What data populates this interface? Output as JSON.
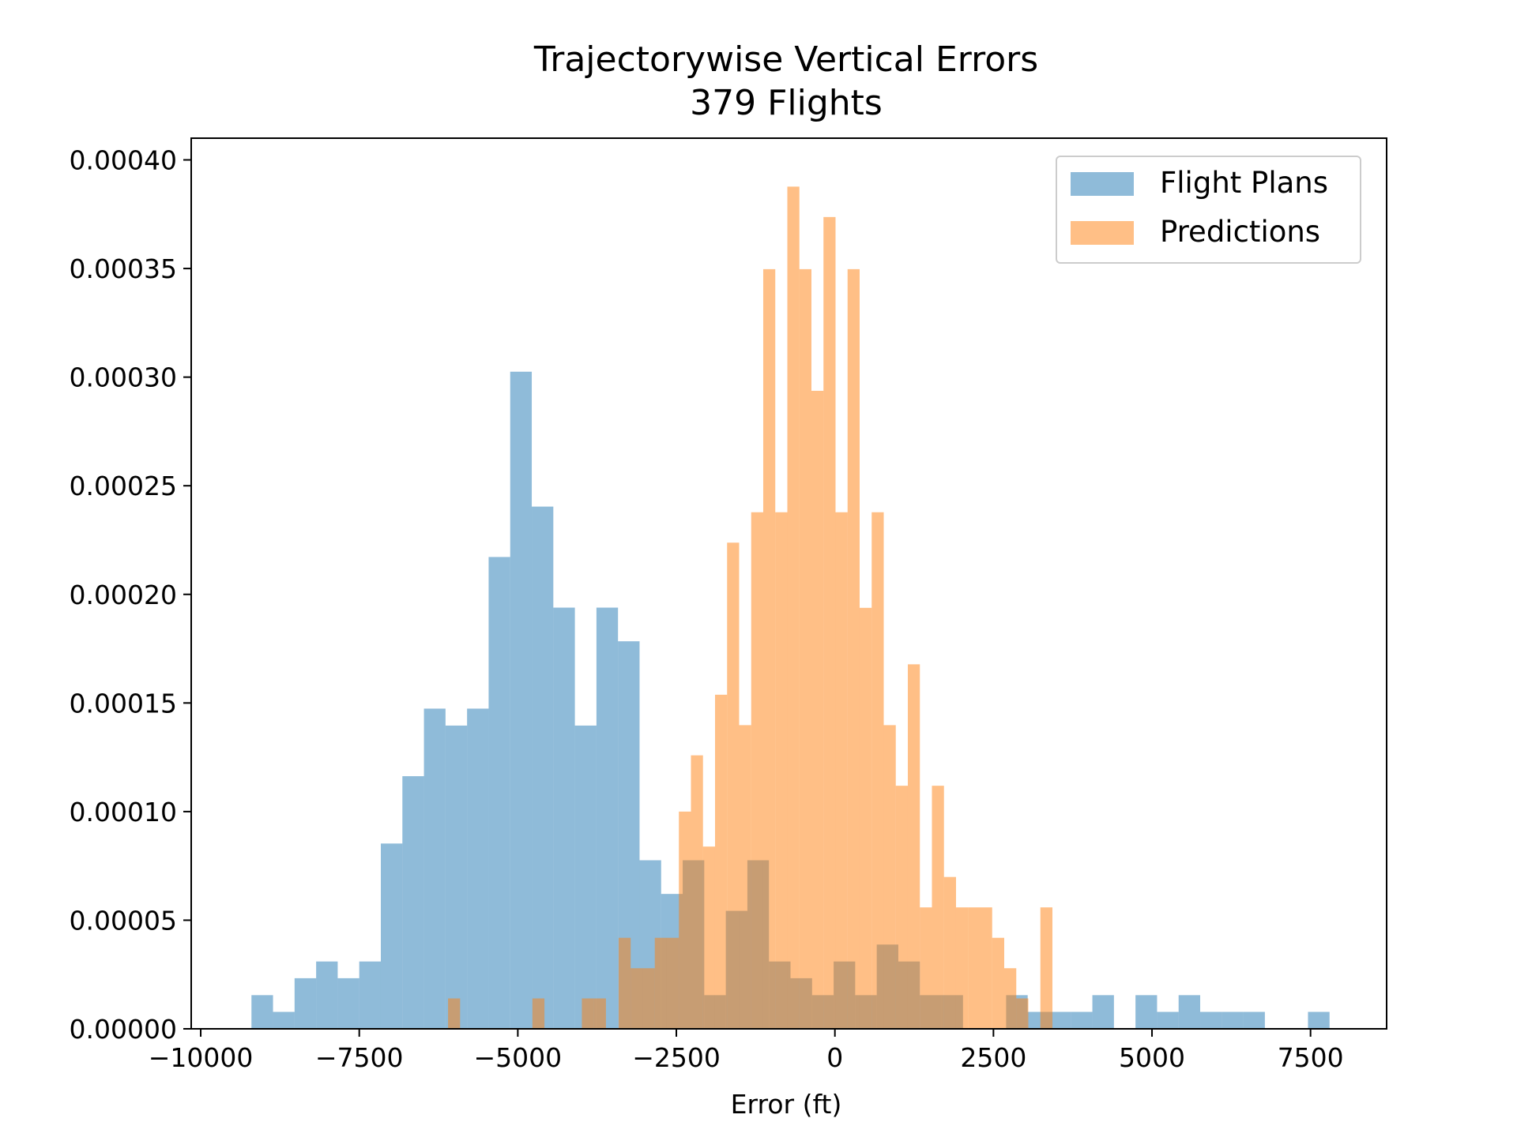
{
  "chart_data": {
    "type": "bar",
    "title": "Trajectorywise Vertical Errors",
    "subtitle": "379 Flights",
    "xlabel": "Error (ft)",
    "ylabel": "",
    "xlim": [
      -10150,
      8700
    ],
    "ylim": [
      0,
      0.00041
    ],
    "xticks": [
      -10000,
      -7500,
      -5000,
      -2500,
      0,
      2500,
      5000,
      7500
    ],
    "xtick_labels": [
      "−10000",
      "−7500",
      "−5000",
      "−2500",
      "0",
      "2500",
      "5000",
      "7500"
    ],
    "yticks": [
      0,
      5e-05,
      0.0001,
      0.00015,
      0.0002,
      0.00025,
      0.0003,
      0.00035,
      0.0004
    ],
    "ytick_labels": [
      "0.00000",
      "0.00005",
      "0.00010",
      "0.00015",
      "0.00020",
      "0.00025",
      "0.00030",
      "0.00035",
      "0.00040"
    ],
    "grid": false,
    "legend_position": "top-right",
    "series": [
      {
        "name": "Flight Plans",
        "color": "#1f77b4",
        "opacity": 0.5,
        "bins": [
          {
            "x0": -9200,
            "x1": -8860,
            "y": 1.55e-05
          },
          {
            "x0": -8860,
            "x1": -8520,
            "y": 7.8e-06
          },
          {
            "x0": -8520,
            "x1": -8180,
            "y": 2.33e-05
          },
          {
            "x0": -8180,
            "x1": -7840,
            "y": 3.1e-05
          },
          {
            "x0": -7840,
            "x1": -7500,
            "y": 2.33e-05
          },
          {
            "x0": -7500,
            "x1": -7160,
            "y": 3.1e-05
          },
          {
            "x0": -7160,
            "x1": -6820,
            "y": 8.53e-05
          },
          {
            "x0": -6820,
            "x1": -6480,
            "y": 0.0001163
          },
          {
            "x0": -6480,
            "x1": -6140,
            "y": 0.0001474
          },
          {
            "x0": -6140,
            "x1": -5800,
            "y": 0.0001396
          },
          {
            "x0": -5800,
            "x1": -5460,
            "y": 0.0001474
          },
          {
            "x0": -5460,
            "x1": -5120,
            "y": 0.0002172
          },
          {
            "x0": -5120,
            "x1": -4780,
            "y": 0.0003025
          },
          {
            "x0": -4780,
            "x1": -4440,
            "y": 0.0002404
          },
          {
            "x0": -4440,
            "x1": -4100,
            "y": 0.0001939
          },
          {
            "x0": -4100,
            "x1": -3760,
            "y": 0.0001396
          },
          {
            "x0": -3760,
            "x1": -3420,
            "y": 0.0001939
          },
          {
            "x0": -3420,
            "x1": -3080,
            "y": 0.0001784
          },
          {
            "x0": -3080,
            "x1": -2740,
            "y": 7.76e-05
          },
          {
            "x0": -2740,
            "x1": -2400,
            "y": 6.21e-05
          },
          {
            "x0": -2400,
            "x1": -2060,
            "y": 7.76e-05
          },
          {
            "x0": -2060,
            "x1": -1720,
            "y": 1.55e-05
          },
          {
            "x0": -1720,
            "x1": -1380,
            "y": 5.43e-05
          },
          {
            "x0": -1380,
            "x1": -1040,
            "y": 7.76e-05
          },
          {
            "x0": -1040,
            "x1": -700,
            "y": 3.1e-05
          },
          {
            "x0": -700,
            "x1": -360,
            "y": 2.33e-05
          },
          {
            "x0": -360,
            "x1": -20,
            "y": 1.55e-05
          },
          {
            "x0": -20,
            "x1": 320,
            "y": 3.1e-05
          },
          {
            "x0": 320,
            "x1": 660,
            "y": 1.55e-05
          },
          {
            "x0": 660,
            "x1": 1000,
            "y": 3.88e-05
          },
          {
            "x0": 1000,
            "x1": 1340,
            "y": 3.1e-05
          },
          {
            "x0": 1340,
            "x1": 1680,
            "y": 1.55e-05
          },
          {
            "x0": 1680,
            "x1": 2020,
            "y": 1.55e-05
          },
          {
            "x0": 2700,
            "x1": 3040,
            "y": 1.55e-05
          },
          {
            "x0": 3040,
            "x1": 3380,
            "y": 7.8e-06
          },
          {
            "x0": 3380,
            "x1": 3720,
            "y": 7.8e-06
          },
          {
            "x0": 3720,
            "x1": 4060,
            "y": 7.8e-06
          },
          {
            "x0": 4060,
            "x1": 4400,
            "y": 1.55e-05
          },
          {
            "x0": 4740,
            "x1": 5080,
            "y": 1.55e-05
          },
          {
            "x0": 5080,
            "x1": 5420,
            "y": 7.8e-06
          },
          {
            "x0": 5420,
            "x1": 5760,
            "y": 1.55e-05
          },
          {
            "x0": 5760,
            "x1": 6100,
            "y": 7.8e-06
          },
          {
            "x0": 6100,
            "x1": 6440,
            "y": 7.8e-06
          },
          {
            "x0": 6440,
            "x1": 6780,
            "y": 7.8e-06
          },
          {
            "x0": 7460,
            "x1": 7800,
            "y": 7.8e-06
          }
        ]
      },
      {
        "name": "Predictions",
        "color": "#ff7f0e",
        "opacity": 0.5,
        "bins": [
          {
            "x0": -6100,
            "x1": -5910,
            "y": 1.4e-05
          },
          {
            "x0": -4770,
            "x1": -4580,
            "y": 1.4e-05
          },
          {
            "x0": -3990,
            "x1": -3800,
            "y": 1.4e-05
          },
          {
            "x0": -3800,
            "x1": -3610,
            "y": 1.4e-05
          },
          {
            "x0": -3410,
            "x1": -3220,
            "y": 4.19e-05
          },
          {
            "x0": -3220,
            "x1": -3030,
            "y": 2.79e-05
          },
          {
            "x0": -3030,
            "x1": -2840,
            "y": 2.79e-05
          },
          {
            "x0": -2840,
            "x1": -2650,
            "y": 4.19e-05
          },
          {
            "x0": -2650,
            "x1": -2460,
            "y": 4.19e-05
          },
          {
            "x0": -2460,
            "x1": -2270,
            "y": 0.0001
          },
          {
            "x0": -2270,
            "x1": -2080,
            "y": 0.0001259
          },
          {
            "x0": -2080,
            "x1": -1890,
            "y": 8.39e-05
          },
          {
            "x0": -1890,
            "x1": -1700,
            "y": 0.0001538
          },
          {
            "x0": -1700,
            "x1": -1510,
            "y": 0.0002238
          },
          {
            "x0": -1510,
            "x1": -1320,
            "y": 0.0001398
          },
          {
            "x0": -1320,
            "x1": -1130,
            "y": 0.0002378
          },
          {
            "x0": -1130,
            "x1": -940,
            "y": 0.0003497
          },
          {
            "x0": -940,
            "x1": -750,
            "y": 0.0002378
          },
          {
            "x0": -750,
            "x1": -560,
            "y": 0.0003877
          },
          {
            "x0": -560,
            "x1": -370,
            "y": 0.0003497
          },
          {
            "x0": -370,
            "x1": -180,
            "y": 0.0002937
          },
          {
            "x0": -180,
            "x1": 10,
            "y": 0.0003737
          },
          {
            "x0": 10,
            "x1": 200,
            "y": 0.0002378
          },
          {
            "x0": 200,
            "x1": 390,
            "y": 0.0003497
          },
          {
            "x0": 390,
            "x1": 580,
            "y": 0.0001938
          },
          {
            "x0": 580,
            "x1": 770,
            "y": 0.0002378
          },
          {
            "x0": 770,
            "x1": 960,
            "y": 0.0001398
          },
          {
            "x0": 960,
            "x1": 1150,
            "y": 0.0001119
          },
          {
            "x0": 1150,
            "x1": 1340,
            "y": 0.0001678
          },
          {
            "x0": 1340,
            "x1": 1530,
            "y": 5.59e-05
          },
          {
            "x0": 1530,
            "x1": 1720,
            "y": 0.0001119
          },
          {
            "x0": 1720,
            "x1": 1910,
            "y": 6.99e-05
          },
          {
            "x0": 1910,
            "x1": 2100,
            "y": 5.59e-05
          },
          {
            "x0": 2100,
            "x1": 2290,
            "y": 5.59e-05
          },
          {
            "x0": 2290,
            "x1": 2480,
            "y": 5.59e-05
          },
          {
            "x0": 2480,
            "x1": 2670,
            "y": 4.19e-05
          },
          {
            "x0": 2670,
            "x1": 2860,
            "y": 2.79e-05
          },
          {
            "x0": 2860,
            "x1": 3050,
            "y": 1.4e-05
          },
          {
            "x0": 3240,
            "x1": 3430,
            "y": 5.59e-05
          }
        ]
      }
    ]
  }
}
